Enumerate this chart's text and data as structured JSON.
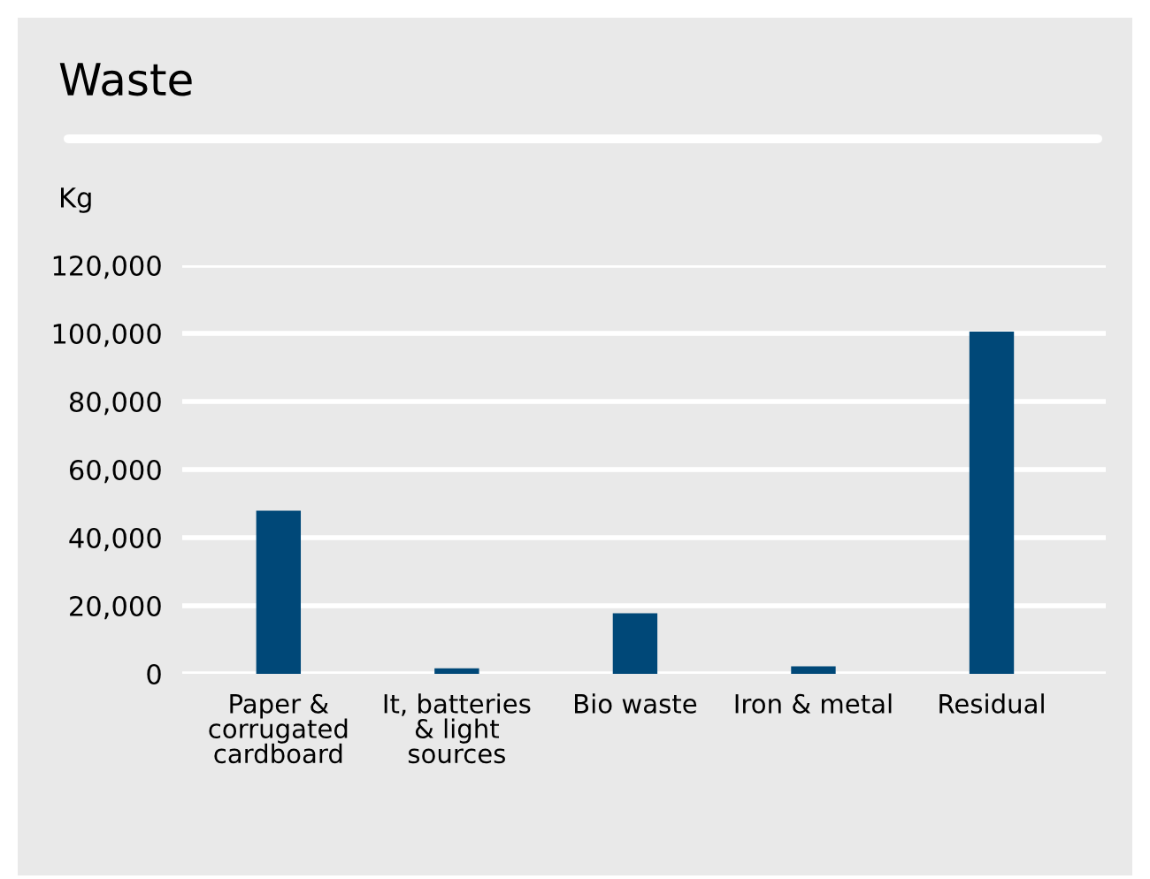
{
  "chart_data": {
    "type": "bar",
    "title": "Waste",
    "ylabel": "Kg",
    "categories": [
      "Paper &\ncorrugated\ncardboard",
      "It, batteries\n& light\nsources",
      "Bio waste",
      "Iron & metal",
      "Residual"
    ],
    "values": [
      47900,
      1600,
      17800,
      2200,
      100500
    ],
    "color": "#004878",
    "ylim": [
      0,
      120000
    ],
    "yticks": [
      {
        "value": 0,
        "label": "0"
      },
      {
        "value": 20000,
        "label": "20,000"
      },
      {
        "value": 40000,
        "label": "40,000"
      },
      {
        "value": 60000,
        "label": "60,000"
      },
      {
        "value": 80000,
        "label": "80,000"
      },
      {
        "value": 100000,
        "label": "100,000"
      },
      {
        "value": 120000,
        "label": "120,000"
      }
    ],
    "grid": "y",
    "legend": false
  }
}
